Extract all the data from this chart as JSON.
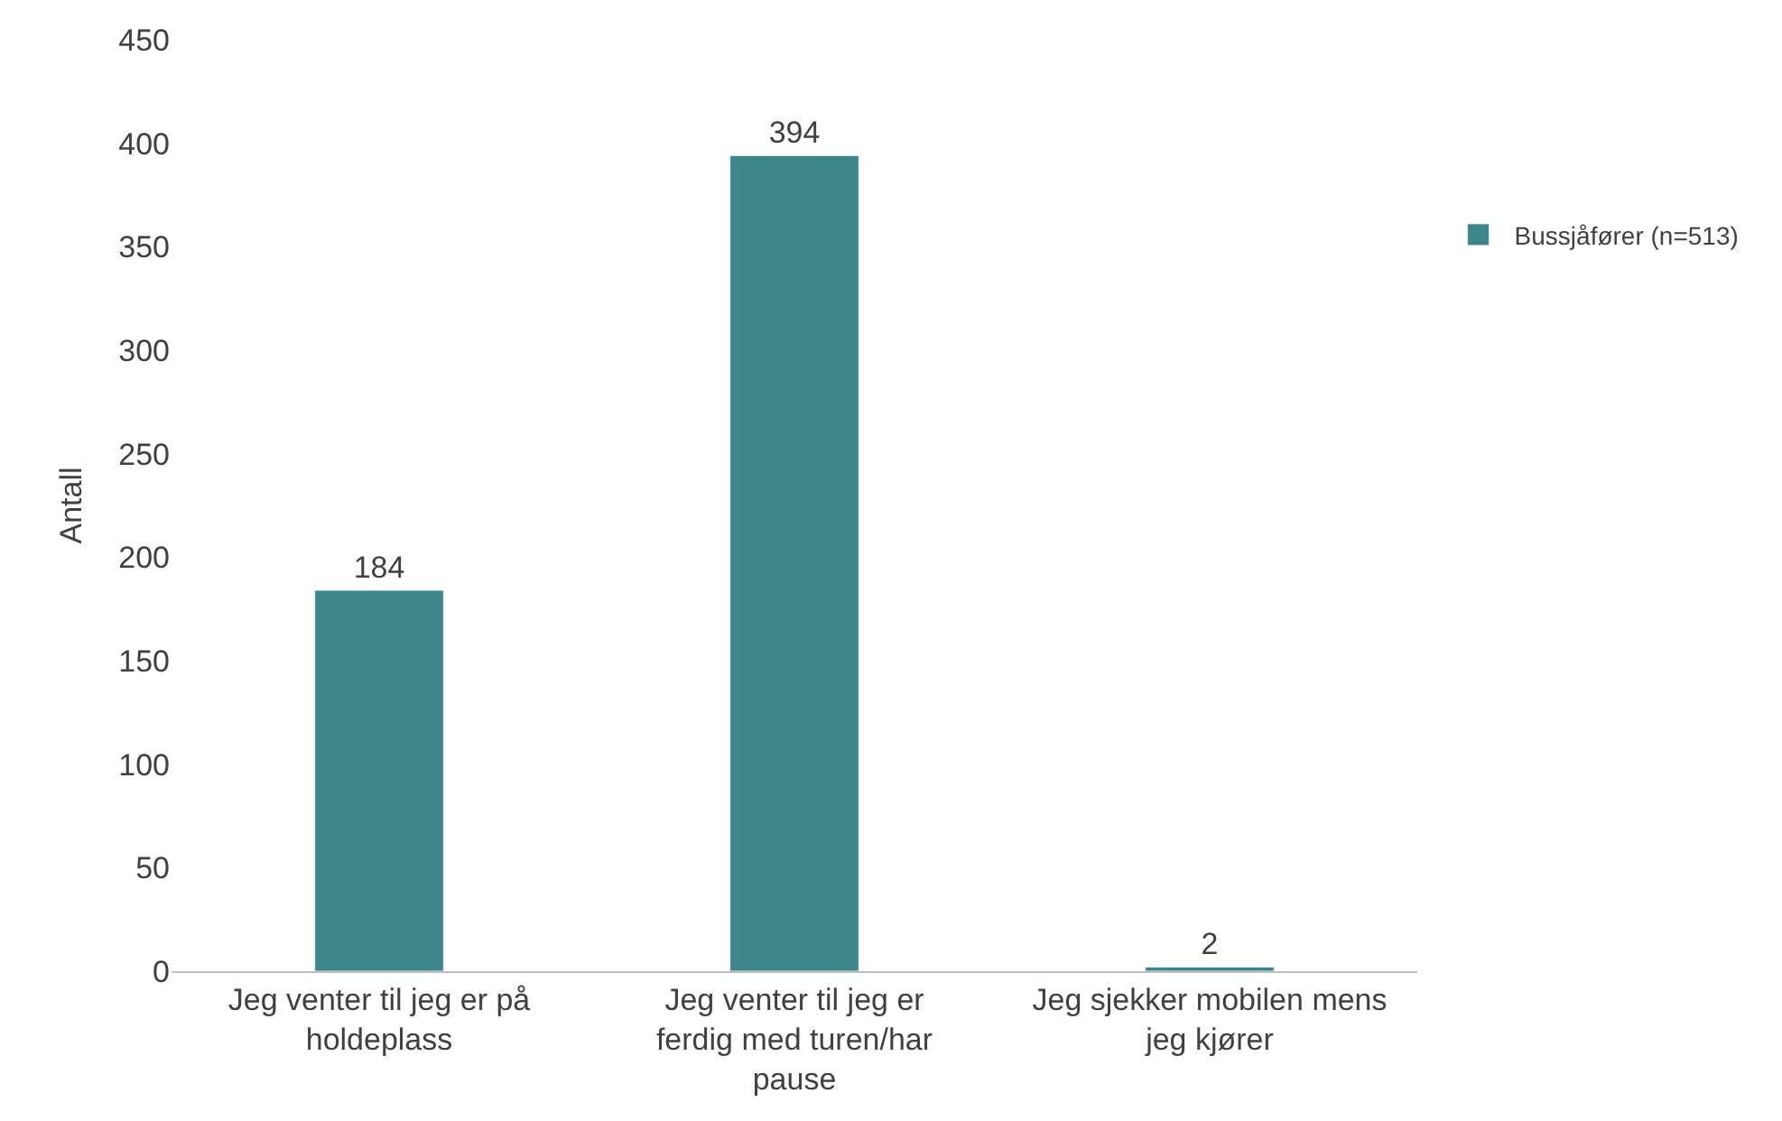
{
  "chart_data": {
    "type": "bar",
    "ylabel": "Antall",
    "categories": [
      "Jeg venter til jeg er på holdeplass",
      "Jeg venter til jeg er ferdig med turen/har pause",
      "Jeg sjekker mobilen mens jeg kjører"
    ],
    "series": [
      {
        "name": "Bussjåfører (n=513)",
        "color": "#3e868a",
        "values": [
          184,
          394,
          2
        ]
      }
    ],
    "ylim": [
      0,
      450
    ],
    "yticks": [
      0,
      50,
      100,
      150,
      200,
      250,
      300,
      350,
      400,
      450
    ],
    "data_labels": true,
    "legend": "right"
  }
}
